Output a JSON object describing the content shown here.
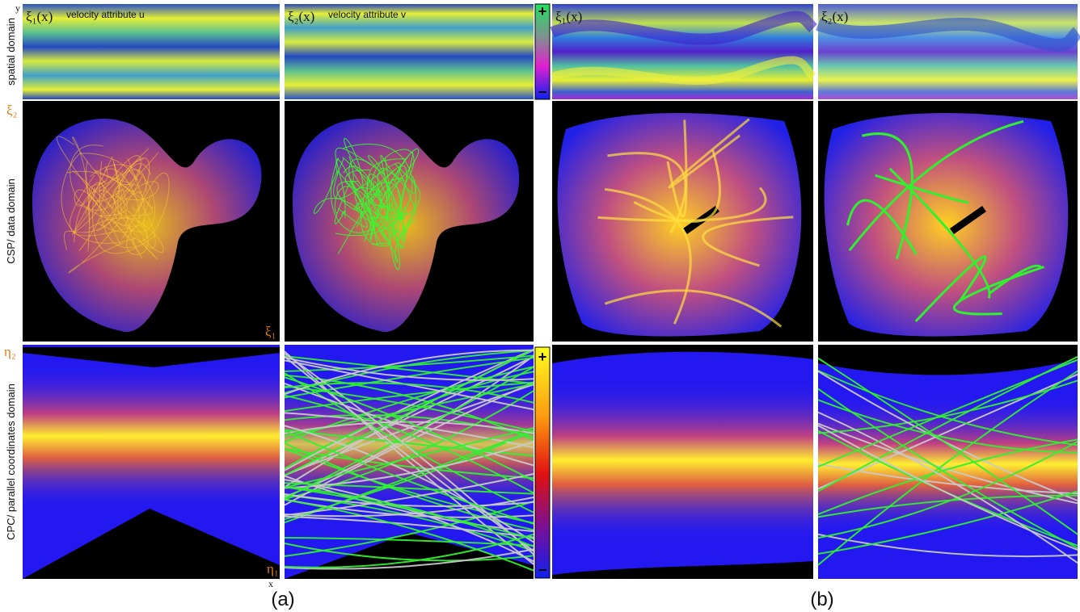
{
  "row_labels": [
    "spatial domain",
    "CSP/ data domain",
    "CPC/ parallel coordinates domain"
  ],
  "axis_labels": {
    "y": "y",
    "x": "x",
    "xi2": "ξ₂",
    "xi1": "ξ₁",
    "eta2": "η₂",
    "eta1": "η₁"
  },
  "spatial_panels": [
    {
      "symbol": "ξ₁(x)",
      "caption": "velocity attribute u"
    },
    {
      "symbol": "ξ₂(x)",
      "caption": "velocity attribute v"
    },
    {
      "symbol": "ξ₁(x)"
    },
    {
      "symbol": "ξ₂(x)"
    }
  ],
  "colorbars": [
    {
      "max_label": "+",
      "min_label": "−"
    },
    {
      "max_label": "+",
      "min_label": "−"
    }
  ],
  "subfigure_labels": [
    "(a)",
    "(b)"
  ]
}
